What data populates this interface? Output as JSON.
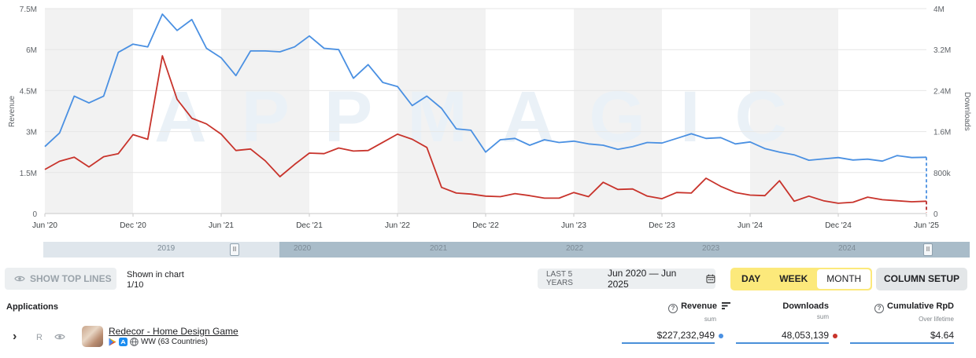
{
  "chart_data": {
    "type": "line",
    "watermark": "APPMAGIC",
    "x": [
      "Jun '20",
      "Jul '20",
      "Aug '20",
      "Sep '20",
      "Oct '20",
      "Nov '20",
      "Dec '20",
      "Jan '21",
      "Feb '21",
      "Mar '21",
      "Apr '21",
      "May '21",
      "Jun '21",
      "Jul '21",
      "Aug '21",
      "Sep '21",
      "Oct '21",
      "Nov '21",
      "Dec '21",
      "Jan '22",
      "Feb '22",
      "Mar '22",
      "Apr '22",
      "May '22",
      "Jun '22",
      "Jul '22",
      "Aug '22",
      "Sep '22",
      "Oct '22",
      "Nov '22",
      "Dec '22",
      "Jan '23",
      "Feb '23",
      "Mar '23",
      "Apr '23",
      "May '23",
      "Jun '23",
      "Jul '23",
      "Aug '23",
      "Sep '23",
      "Oct '23",
      "Nov '23",
      "Dec '23",
      "Jan '24",
      "Feb '24",
      "Mar '24",
      "Apr '24",
      "May '24",
      "Jun '24",
      "Jul '24",
      "Aug '24",
      "Sep '24",
      "Oct '24",
      "Nov '24",
      "Dec '24",
      "Jan '25",
      "Feb '25",
      "Mar '25",
      "Apr '25",
      "May '25",
      "Jun '25"
    ],
    "x_tick_labels": [
      "Jun '20",
      "Dec '20",
      "Jun '21",
      "Dec '21",
      "Jun '22",
      "Dec '22",
      "Jun '23",
      "Dec '23",
      "Jun '24",
      "Dec '24",
      "Jun '25"
    ],
    "y_left": {
      "label": "Revenue",
      "ticks": [
        "0",
        "1.5M",
        "3M",
        "4.5M",
        "6M",
        "7.5M"
      ],
      "range": [
        0,
        7500000
      ]
    },
    "y_right": {
      "label": "Downloads",
      "ticks": [
        "0",
        "800k",
        "1.6M",
        "2.4M",
        "3.2M",
        "4M"
      ],
      "range": [
        0,
        4000000
      ]
    },
    "shaded_bands": [
      [
        "Jul '20",
        "Dec '20"
      ],
      [
        "Jul '21",
        "Dec '21"
      ],
      [
        "Jul '22",
        "Dec '22"
      ],
      [
        "Jul '23",
        "Dec '23"
      ],
      [
        "Jul '24",
        "Dec '24"
      ]
    ],
    "series": [
      {
        "axis": "left",
        "color": "#4a90e2",
        "values": [
          2450000,
          2950000,
          4300000,
          4050000,
          4300000,
          5900000,
          6200000,
          6100000,
          7300000,
          6700000,
          7100000,
          6050000,
          5700000,
          5050000,
          5950000,
          5950000,
          5920000,
          6100000,
          6500000,
          6050000,
          6000000,
          4950000,
          5450000,
          4800000,
          4650000,
          3950000,
          4300000,
          3850000,
          3100000,
          3050000,
          2250000,
          2700000,
          2750000,
          2500000,
          2700000,
          2600000,
          2650000,
          2550000,
          2500000,
          2350000,
          2450000,
          2600000,
          2580000,
          2750000,
          2920000,
          2750000,
          2780000,
          2550000,
          2620000,
          2380000,
          2250000,
          2150000,
          1950000,
          2000000,
          2050000,
          1960000,
          1990000,
          1920000,
          2120000,
          2050000,
          2060000
        ],
        "projected_tail": [
          2060000,
          120000
        ]
      },
      {
        "axis": "right",
        "color": "#c8332b",
        "values": [
          860000,
          1020000,
          1100000,
          910000,
          1110000,
          1170000,
          1540000,
          1450000,
          3080000,
          2230000,
          1860000,
          1750000,
          1550000,
          1230000,
          1260000,
          1030000,
          720000,
          960000,
          1180000,
          1170000,
          1280000,
          1220000,
          1230000,
          1390000,
          1550000,
          1450000,
          1290000,
          510000,
          400000,
          380000,
          340000,
          330000,
          390000,
          350000,
          300000,
          300000,
          410000,
          330000,
          610000,
          470000,
          480000,
          340000,
          290000,
          410000,
          400000,
          690000,
          530000,
          410000,
          360000,
          350000,
          640000,
          240000,
          340000,
          250000,
          200000,
          220000,
          320000,
          270000,
          250000,
          230000,
          240000
        ],
        "projected_tail": [
          240000,
          20000
        ]
      }
    ]
  },
  "range_slider": {
    "years": [
      "2019",
      "2020",
      "2021",
      "2022",
      "2023",
      "2024"
    ],
    "handle_glyph": "II"
  },
  "toolbar": {
    "show_top_lines": "SHOW TOP LINES",
    "shown_in_chart_label": "Shown in chart",
    "shown_in_chart_value": "1/10",
    "period_preset": "LAST 5 YEARS",
    "period_range": "Jun 2020 — Jun 2025",
    "granularity": [
      "DAY",
      "WEEK",
      "MONTH"
    ],
    "granularity_active": "MONTH",
    "column_setup": "COLUMN SETUP"
  },
  "table": {
    "applications_header": "Applications",
    "columns": [
      {
        "title": "Revenue",
        "sub": "sum"
      },
      {
        "title": "Downloads",
        "sub": "sum"
      },
      {
        "title": "Cumulative RpD",
        "sub": "Over lifetime"
      }
    ],
    "rows": [
      {
        "rank": "R",
        "name": "Redecor - Home Design Game",
        "region": "WW (63 Countries)",
        "revenue": "$227,232,949",
        "downloads": "48,053,139",
        "rpd": "$4.64"
      }
    ]
  },
  "colors": {
    "revenue": "#4a90e2",
    "downloads": "#c8332b",
    "accent_yellow": "#fce97b"
  }
}
